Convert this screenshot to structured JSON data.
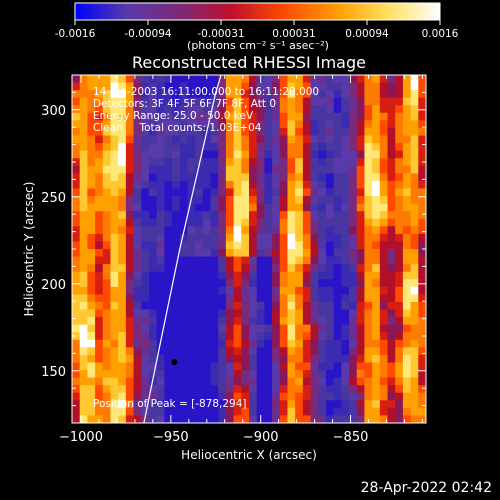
{
  "colorbar": {
    "ticks": [
      "-0.0016",
      "-0.00094",
      "-0.00031",
      "0.00031",
      "0.00094",
      "0.0016"
    ],
    "unit_label": "(photons cm⁻² s⁻¹ asec⁻²)",
    "stops": [
      "#0000ff",
      "#5a3aa8",
      "#7a2a7a",
      "#c0102a",
      "#ff4a00",
      "#ff9a00",
      "#ffe060",
      "#ffffff"
    ]
  },
  "chart_data": {
    "type": "heatmap",
    "title": "Reconstructed RHESSI Image",
    "xlabel": "Heliocentric X (arcsec)",
    "ylabel": "Heliocentric Y (arcsec)",
    "xlim": [
      -1005,
      -808
    ],
    "ylim": [
      120,
      320
    ],
    "x_ticks": [
      -1000,
      -950,
      -900,
      -850
    ],
    "y_ticks": [
      150,
      200,
      250,
      300
    ],
    "x_tick_labels": [
      "−1000",
      "−950",
      "−900",
      "−850"
    ],
    "y_tick_labels": [
      "150",
      "200",
      "250",
      "300"
    ],
    "annotations": [
      "14-Jan-2003 16:11:00.000 to 16:11:28.000",
      "Detectors: 3F 4F 5F 6F 7F 8F, Att 0",
      "Energy Range: 25.0 - 50.0 keV",
      "Clean     Total counts: 1.03E+04"
    ],
    "peak_label": "Position of Peak = [-878,294]",
    "peak": [
      -878,
      294
    ],
    "limb_curve": [
      [
        -965,
        120
      ],
      [
        -955,
        170
      ],
      [
        -945,
        220
      ],
      [
        -935,
        265
      ],
      [
        -925,
        310
      ],
      [
        -922,
        320
      ]
    ],
    "dot_marker": [
      -948,
      155
    ]
  },
  "footer": {
    "timestamp": "28-Apr-2022 02:42"
  }
}
